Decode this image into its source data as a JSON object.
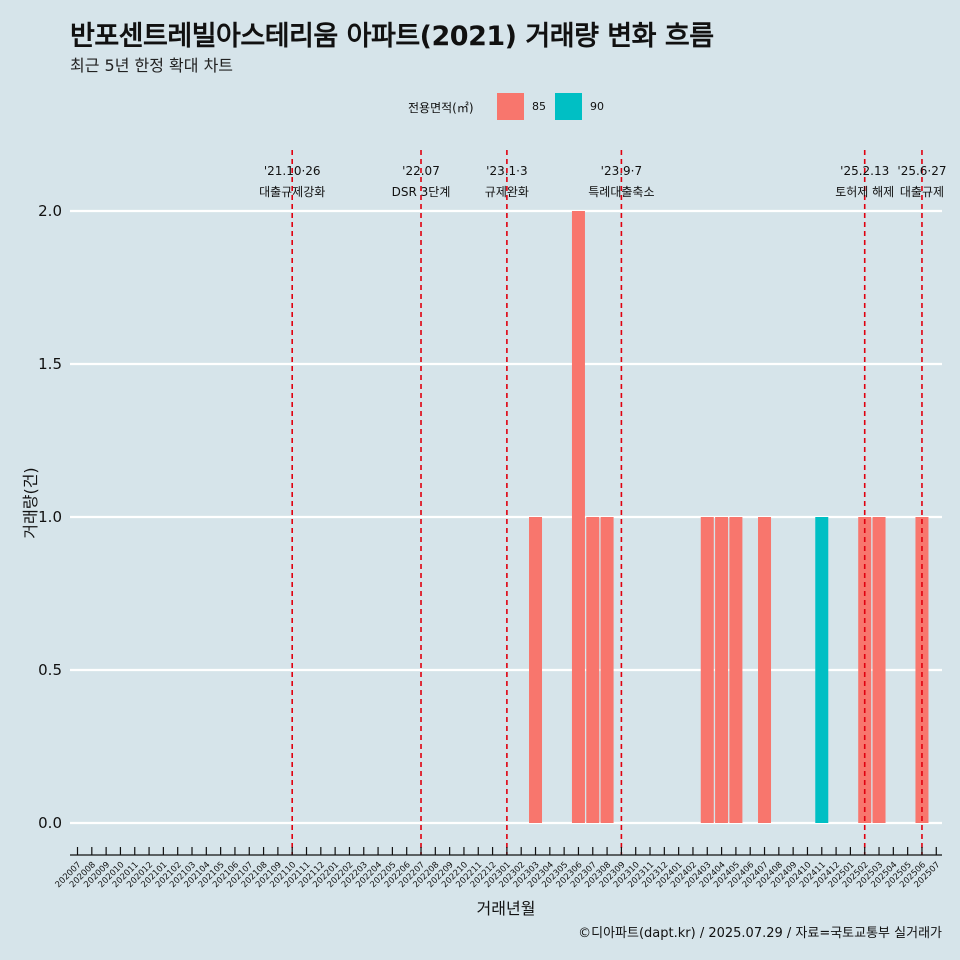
{
  "title": "반포센트레빌아스테리움 아파트(2021) 거래량 변화 흐름",
  "subtitle": "최근 5년 한정 확대 차트",
  "caption": "©디아파트(dapt.kr) / 2025.07.29 / 자료=국토교통부 실거래가",
  "legend": {
    "title": "전용면적(㎡)",
    "items": [
      {
        "label": "85",
        "color": "#f8766d"
      },
      {
        "label": "90",
        "color": "#00bfc4"
      }
    ]
  },
  "chart_data": {
    "type": "bar",
    "xlabel": "거래년월",
    "ylabel": "거래량(건)",
    "ylim": [
      0,
      2
    ],
    "yticks": [
      "0.0",
      "0.5",
      "1.0",
      "1.5",
      "2.0"
    ],
    "grid": true,
    "legend_position": "top",
    "categories": [
      "202007",
      "202008",
      "202009",
      "202010",
      "202011",
      "202012",
      "202101",
      "202102",
      "202103",
      "202104",
      "202105",
      "202106",
      "202107",
      "202108",
      "202109",
      "202110",
      "202111",
      "202112",
      "202201",
      "202202",
      "202203",
      "202204",
      "202205",
      "202206",
      "202207",
      "202208",
      "202209",
      "202210",
      "202211",
      "202212",
      "202301",
      "202302",
      "202303",
      "202304",
      "202305",
      "202306",
      "202307",
      "202308",
      "202309",
      "202310",
      "202311",
      "202312",
      "202401",
      "202402",
      "202403",
      "202404",
      "202405",
      "202406",
      "202407",
      "202408",
      "202409",
      "202410",
      "202411",
      "202412",
      "202501",
      "202502",
      "202503",
      "202504",
      "202505",
      "202506",
      "202507"
    ],
    "series": [
      {
        "name": "85",
        "color": "#f8766d",
        "values": [
          0,
          0,
          0,
          0,
          0,
          0,
          0,
          0,
          0,
          0,
          0,
          0,
          0,
          0,
          0,
          0,
          0,
          0,
          0,
          0,
          0,
          0,
          0,
          0,
          0,
          0,
          0,
          0,
          0,
          0,
          0,
          0,
          1,
          0,
          0,
          2,
          1,
          1,
          0,
          0,
          0,
          0,
          0,
          0,
          1,
          1,
          1,
          0,
          1,
          0,
          0,
          0,
          0,
          0,
          0,
          1,
          1,
          0,
          0,
          1,
          0
        ]
      },
      {
        "name": "90",
        "color": "#00bfc4",
        "values": [
          0,
          0,
          0,
          0,
          0,
          0,
          0,
          0,
          0,
          0,
          0,
          0,
          0,
          0,
          0,
          0,
          0,
          0,
          0,
          0,
          0,
          0,
          0,
          0,
          0,
          0,
          0,
          0,
          0,
          0,
          0,
          0,
          0,
          0,
          0,
          0,
          0,
          0,
          0,
          0,
          0,
          0,
          0,
          0,
          0,
          0,
          0,
          0,
          0,
          0,
          0,
          0,
          1,
          0,
          0,
          0,
          0,
          0,
          0,
          0,
          0
        ]
      }
    ],
    "annotations": [
      {
        "x": "202110",
        "date": "'21.10·26",
        "text": "대출규제강화"
      },
      {
        "x": "202207",
        "date": "'22.07",
        "text": "DSR 3단계"
      },
      {
        "x": "202301",
        "date": "'23.1·3",
        "text": "규제완화"
      },
      {
        "x": "202309",
        "date": "'23.9·7",
        "text": "특례대출축소"
      },
      {
        "x": "202502",
        "date": "'25.2.13",
        "text": "토허제 해제"
      },
      {
        "x": "202506",
        "date": "'25.6·27",
        "text": "대출규제"
      }
    ],
    "annotation_line_color": "#e0000f"
  }
}
